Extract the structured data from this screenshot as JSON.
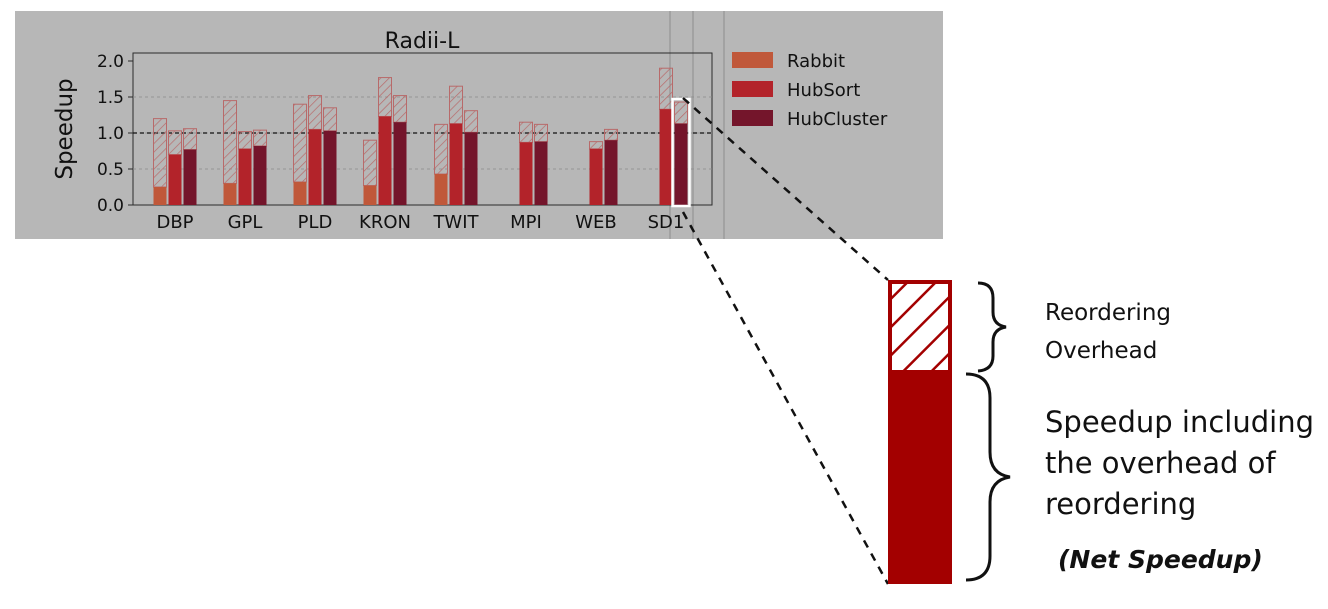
{
  "chart_data": {
    "type": "bar",
    "title": "Radii-L",
    "ylabel": "Speedup",
    "xlabel": "",
    "ylim": [
      0,
      2.0
    ],
    "yticks": [
      "0.0",
      "0.5",
      "1.0",
      "1.5",
      "2.0"
    ],
    "reference_line": 1.0,
    "grid": true,
    "legend_position": "right",
    "categories": [
      "DBP",
      "GPL",
      "PLD",
      "KRON",
      "TWIT",
      "MPI",
      "WEB",
      "SD1"
    ],
    "series": [
      {
        "name": "Rabbit",
        "color": "#c0583a",
        "net_speedup": [
          0.25,
          0.3,
          0.32,
          0.27,
          0.43,
          null,
          null,
          null
        ],
        "speedup_without_overhead": [
          1.2,
          1.45,
          1.4,
          0.9,
          1.12,
          null,
          null,
          null
        ]
      },
      {
        "name": "HubSort",
        "color": "#b3232a",
        "net_speedup": [
          0.7,
          0.78,
          1.05,
          1.23,
          1.13,
          0.87,
          0.78,
          1.33
        ],
        "speedup_without_overhead": [
          1.03,
          1.02,
          1.52,
          1.77,
          1.65,
          1.15,
          0.88,
          1.9
        ]
      },
      {
        "name": "HubCluster",
        "color": "#74152b",
        "net_speedup": [
          0.77,
          0.82,
          1.03,
          1.15,
          1.01,
          0.88,
          0.9,
          1.13
        ],
        "speedup_without_overhead": [
          1.06,
          1.04,
          1.35,
          1.52,
          1.31,
          1.12,
          1.05,
          1.43
        ]
      }
    ]
  },
  "annotation": {
    "overhead_line1": "Reordering",
    "overhead_line2": "Overhead",
    "speedup_line1": "Speedup including",
    "speedup_line2": "the overhead of",
    "speedup_line3": "reordering",
    "net_label": "(Net Speedup)",
    "bar_color": "#a30000"
  }
}
